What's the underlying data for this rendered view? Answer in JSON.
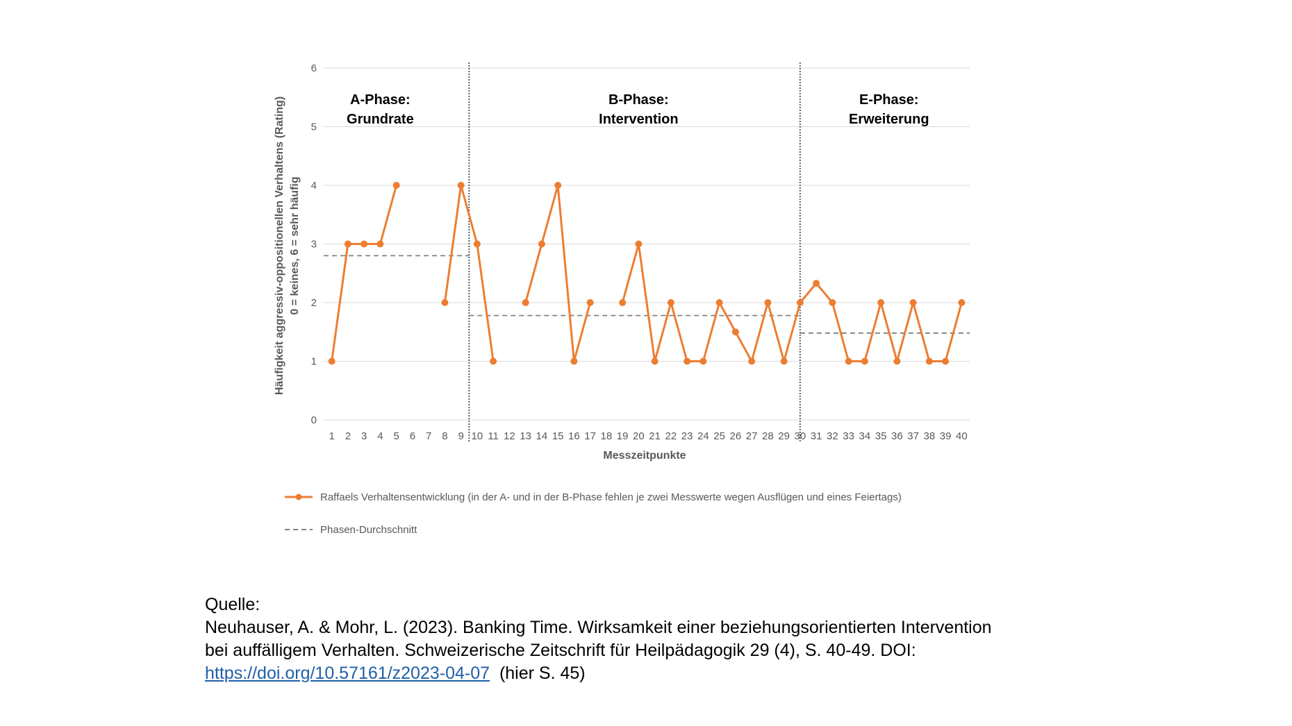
{
  "chart_data": {
    "type": "line",
    "xlabel": "Messzeitpunkte",
    "ylabel_lines": [
      "Häufigkeit aggressiv-oppositionellen Verhaltens (Rating)",
      "0 = keines, 6 = sehr häufig"
    ],
    "ylim": [
      0,
      6
    ],
    "yticks": [
      0,
      1,
      2,
      3,
      4,
      5,
      6
    ],
    "x": [
      1,
      2,
      3,
      4,
      5,
      6,
      7,
      8,
      9,
      10,
      11,
      12,
      13,
      14,
      15,
      16,
      17,
      18,
      19,
      20,
      21,
      22,
      23,
      24,
      25,
      26,
      27,
      28,
      29,
      30,
      31,
      32,
      33,
      34,
      35,
      36,
      37,
      38,
      39,
      40
    ],
    "grid": "horizontal",
    "legend_position": "bottom",
    "series": [
      {
        "name": "Raffaels Verhaltensentwicklung (in der A- und in der B-Phase fehlen je zwei Messwerte wegen Ausflügen und eines Feiertags)",
        "color": "#ed7d31",
        "values": [
          1,
          3,
          3,
          3,
          4,
          null,
          null,
          2,
          4,
          3,
          1,
          null,
          2,
          3,
          4,
          1,
          2,
          null,
          2,
          3,
          1,
          2,
          1,
          1,
          2,
          1.5,
          1,
          2,
          1,
          2,
          2.33,
          2,
          1,
          1,
          2,
          1,
          2,
          1,
          1,
          2
        ]
      },
      {
        "name": "Phasen-Durchschnitt",
        "color": "#808080",
        "style": "dashed",
        "segments": [
          {
            "x_from": 0.5,
            "x_to": 9.5,
            "value": 2.8
          },
          {
            "x_from": 9.5,
            "x_to": 30,
            "value": 1.78
          },
          {
            "x_from": 30,
            "x_to": 40.5,
            "value": 1.48
          }
        ]
      }
    ],
    "phase_boundaries": [
      9.5,
      30
    ],
    "phases": [
      {
        "line1": "A-Phase:",
        "line2": "Grundrate",
        "x_center": 4
      },
      {
        "line1": "B-Phase:",
        "line2": "Intervention",
        "x_center": 20
      },
      {
        "line1": "E-Phase:",
        "line2": "Erweiterung",
        "x_center": 35.5
      }
    ]
  },
  "source": {
    "label": "Quelle:",
    "citation_line1": "Neuhauser, A. & Mohr, L. (2023). Banking Time. Wirksamkeit einer beziehungsorientierten Intervention",
    "citation_line2": "bei auffälligem Verhalten. Schweizerische Zeitschrift für Heilpädagogik 29 (4), S. 40-49. DOI:",
    "link": "https://doi.org/10.57161/z2023-04-07",
    "page_note": "(hier S. 45)"
  }
}
